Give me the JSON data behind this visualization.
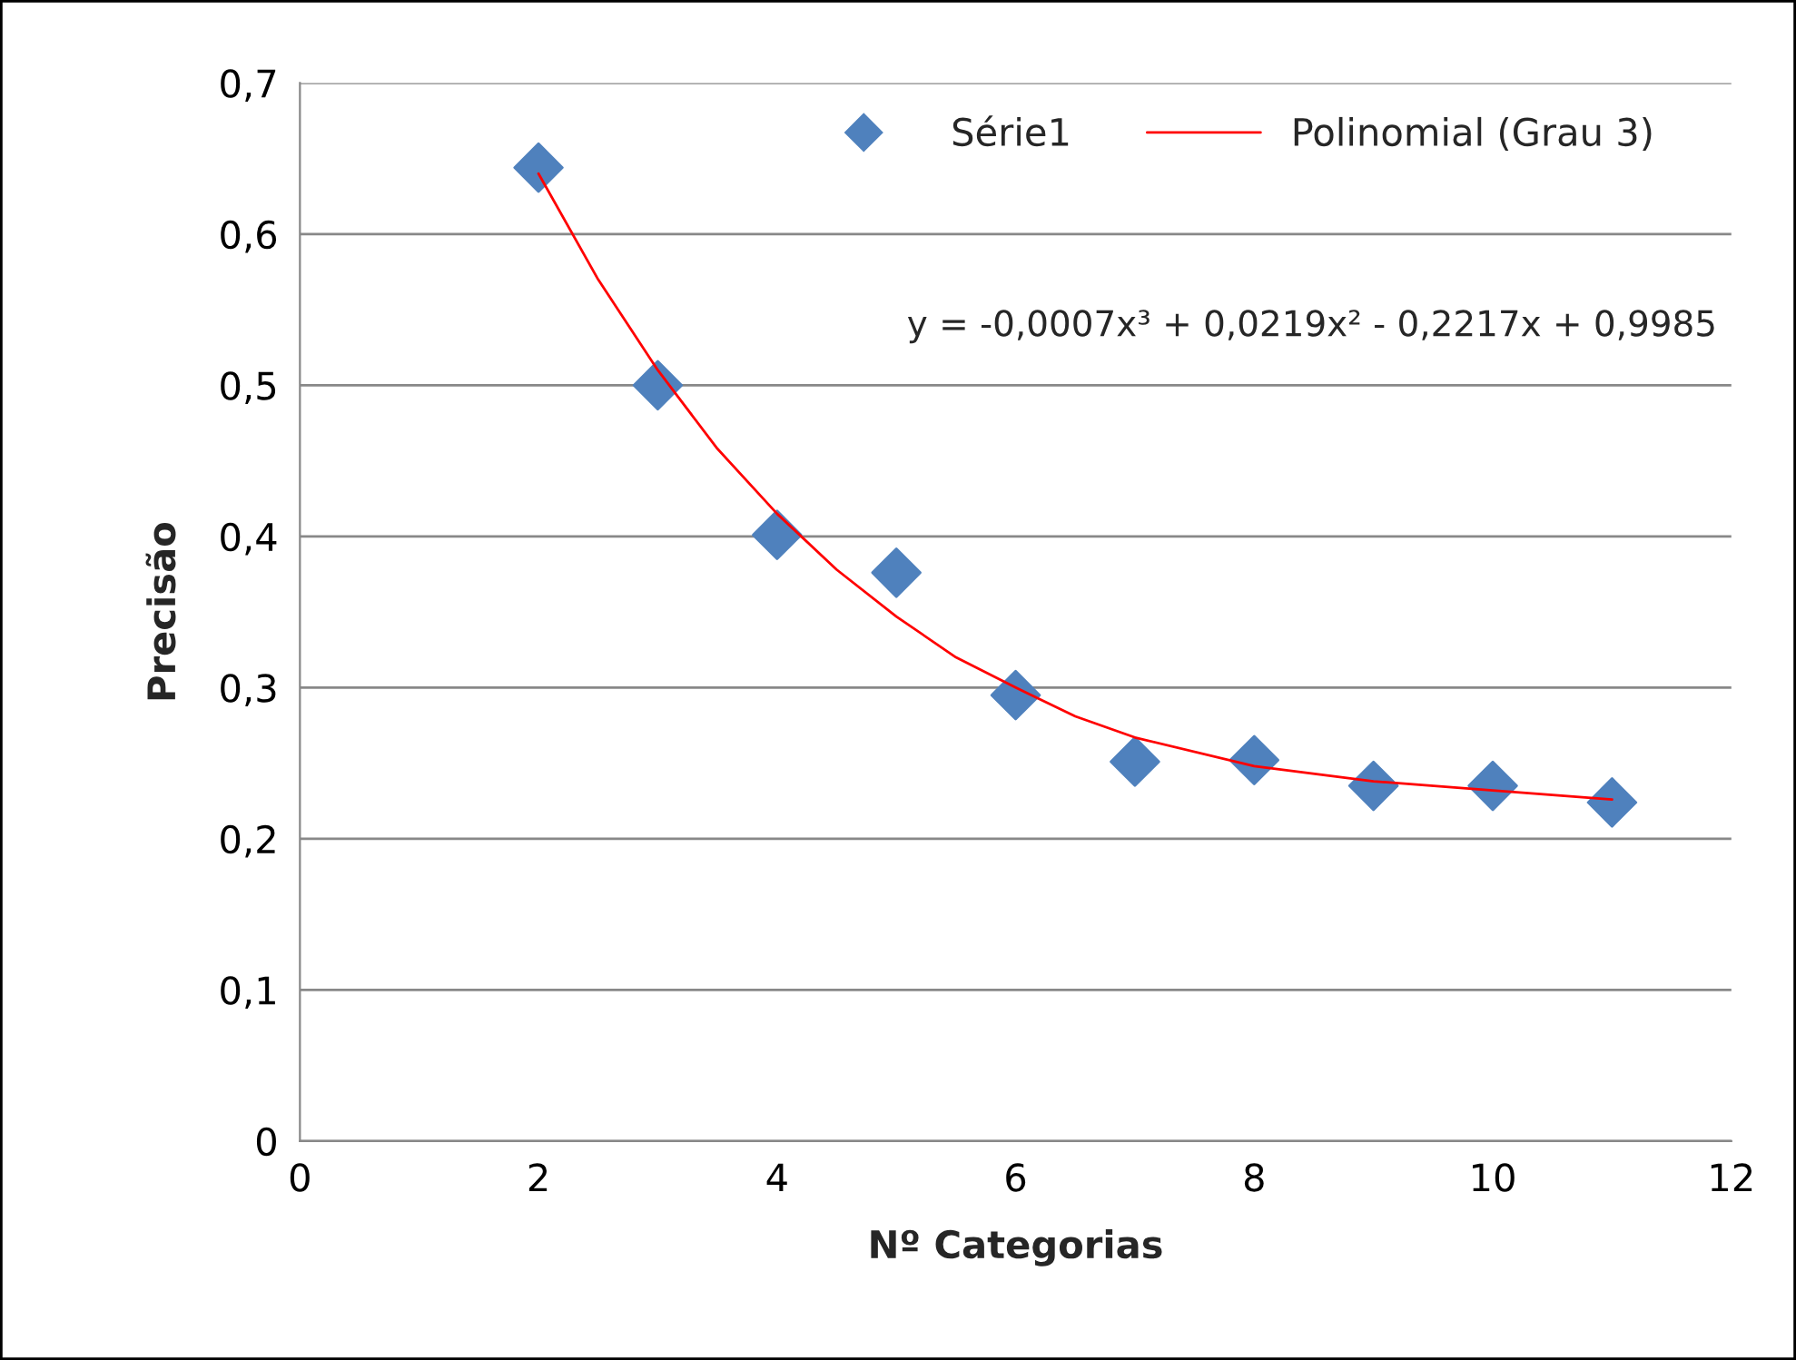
{
  "chart_data": {
    "type": "scatter",
    "xlabel": "Nº Categorias",
    "ylabel": "Precisão",
    "xlim": [
      0,
      12
    ],
    "xticks": [
      0,
      2,
      4,
      6,
      8,
      10,
      12
    ],
    "ylim": [
      0,
      0.7
    ],
    "yticks": [
      {
        "value": 0,
        "label": "0"
      },
      {
        "value": 0.1,
        "label": "0,1"
      },
      {
        "value": 0.2,
        "label": "0,2"
      },
      {
        "value": 0.3,
        "label": "0,3"
      },
      {
        "value": 0.4,
        "label": "0,4"
      },
      {
        "value": 0.5,
        "label": "0,5"
      },
      {
        "value": 0.6,
        "label": "0,6"
      },
      {
        "value": 0.7,
        "label": "0,7"
      }
    ],
    "grid": "y",
    "legend": "top right",
    "marker": "diamond",
    "series": [
      {
        "name": "Série1",
        "color": "#4f81bd",
        "x": [
          2,
          3,
          4,
          5,
          6,
          7,
          8,
          9,
          10,
          11
        ],
        "values": [
          0.644,
          0.5,
          0.401,
          0.376,
          0.295,
          0.251,
          0.252,
          0.235,
          0.235,
          0.224
        ]
      },
      {
        "name": "Polinomial (Grau 3)",
        "type": "line",
        "color": "#ff0000",
        "marker": "none",
        "line_style": "solid",
        "x": [
          2,
          2.5,
          3,
          3.5,
          4,
          4.5,
          5,
          5.5,
          6,
          6.5,
          7,
          8,
          9,
          10,
          11
        ],
        "values": [
          0.64,
          0.57,
          0.51,
          0.458,
          0.415,
          0.378,
          0.347,
          0.32,
          0.3,
          0.281,
          0.267,
          0.248,
          0.238,
          0.232,
          0.226
        ]
      }
    ],
    "annotations": [
      "y = -0,0007x³ + 0,0219x² - 0,2217x + 0,9985"
    ]
  }
}
